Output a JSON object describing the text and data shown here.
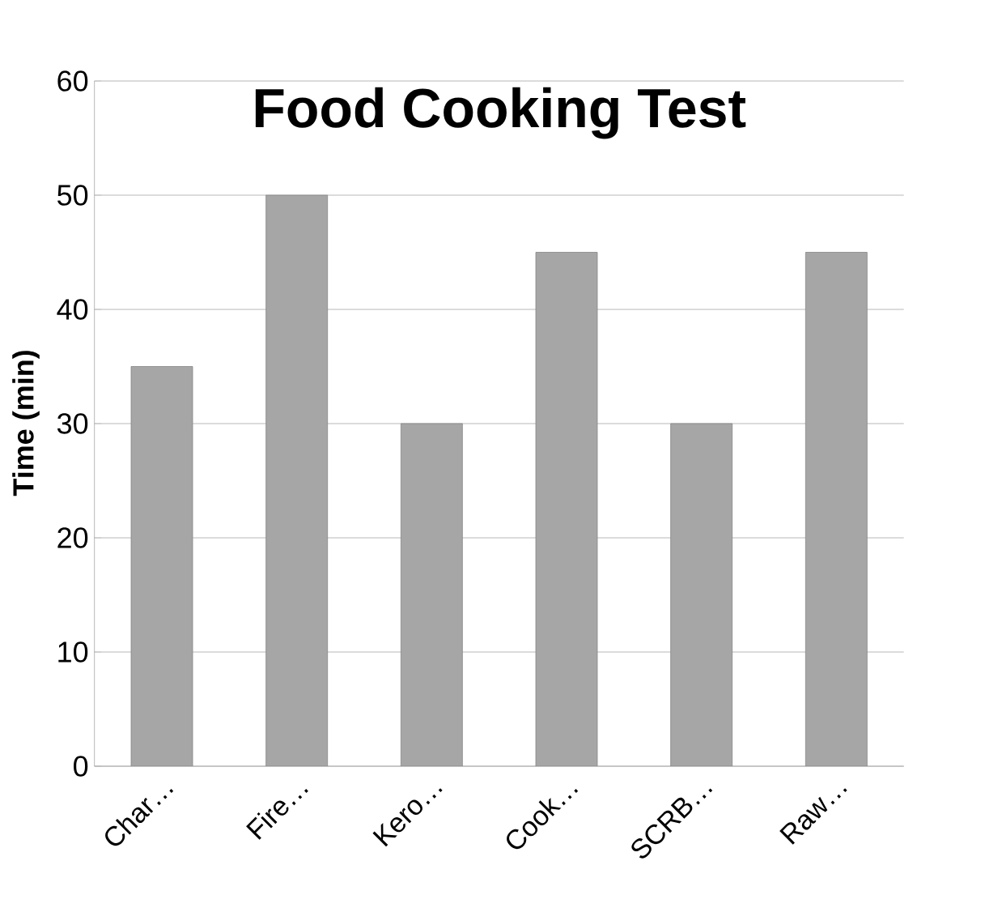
{
  "chart_data": {
    "type": "bar",
    "title": "Food Cooking Test",
    "ylabel": "Time (min)",
    "categories": [
      "Char…",
      "Fire…",
      "Kero…",
      "Cook…",
      "SCRB…",
      "Raw…"
    ],
    "values": [
      35,
      50,
      30,
      45,
      30,
      45
    ],
    "color": "#a6a6a6",
    "ylim": [
      0,
      60
    ],
    "yticks": [
      0,
      10,
      20,
      30,
      40,
      50,
      60
    ],
    "grid": "y"
  }
}
